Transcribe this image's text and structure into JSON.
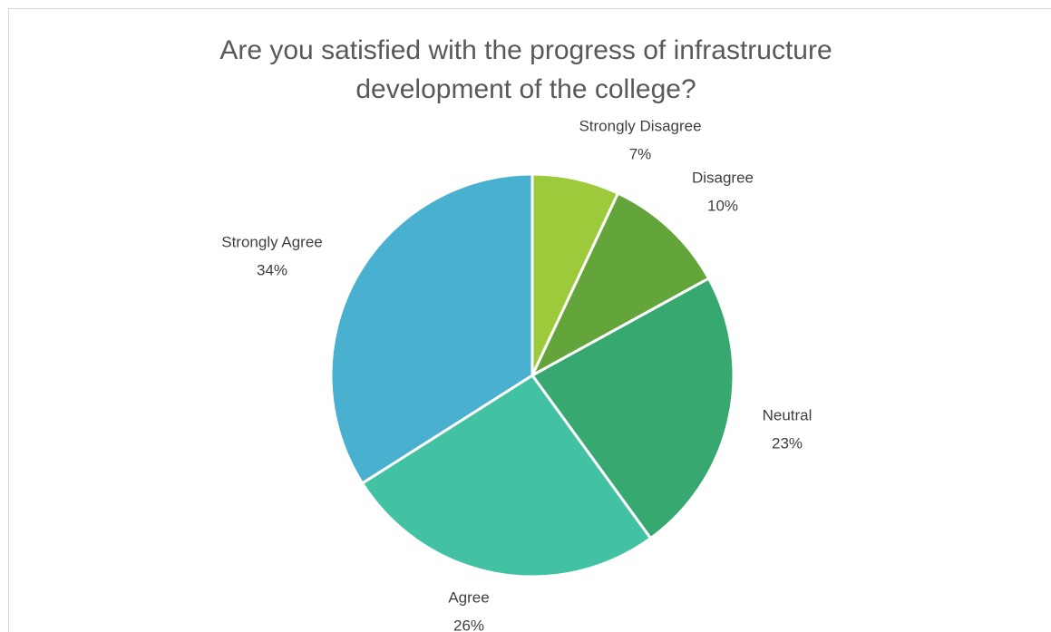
{
  "chart_data": {
    "type": "pie",
    "title": "Are you satisfied with the progress of infrastructure development of the college?",
    "categories": [
      "Strongly Disagree",
      "Disagree",
      "Neutral",
      "Agree",
      "Strongly Agree"
    ],
    "values": [
      7,
      10,
      23,
      26,
      34
    ],
    "value_labels": [
      "7%",
      "10%",
      "23%",
      "26%",
      "34%"
    ],
    "colors": [
      "#9dca3a",
      "#63a53a",
      "#37a870",
      "#43c1a3",
      "#4ab0cf"
    ]
  }
}
